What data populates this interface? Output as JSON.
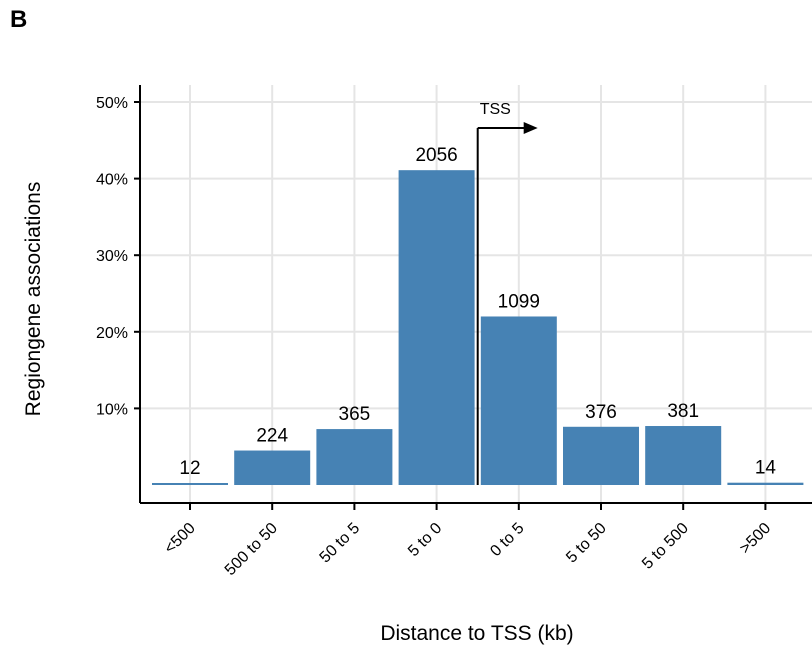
{
  "panel_label": "B",
  "chart_data": {
    "type": "bar",
    "title": "",
    "xlabel": "Distance to TSS (kb)",
    "ylabel": "Regiongene associations",
    "categories": [
      "<500",
      "500 to 50",
      "50 to 5",
      "5 to 0",
      "0 to 5",
      "5 to 50",
      "5 to 500",
      ">500"
    ],
    "values": [
      0.2,
      4.5,
      7.3,
      41.1,
      22.0,
      7.6,
      7.7,
      0.3
    ],
    "data_labels": [
      "12",
      "224",
      "365",
      "2056",
      "1099",
      "376",
      "381",
      "14"
    ],
    "yticks": [
      10,
      20,
      30,
      40,
      50
    ],
    "ytick_labels": [
      "10%",
      "20%",
      "30%",
      "40%",
      "50%"
    ],
    "ylim": [
      0,
      50
    ],
    "grid": true,
    "bar_color": "#4682b4",
    "annotation": {
      "text": "TSS",
      "position": "between 5 to 0 and 0 to 5",
      "arrow_direction": "right"
    }
  }
}
